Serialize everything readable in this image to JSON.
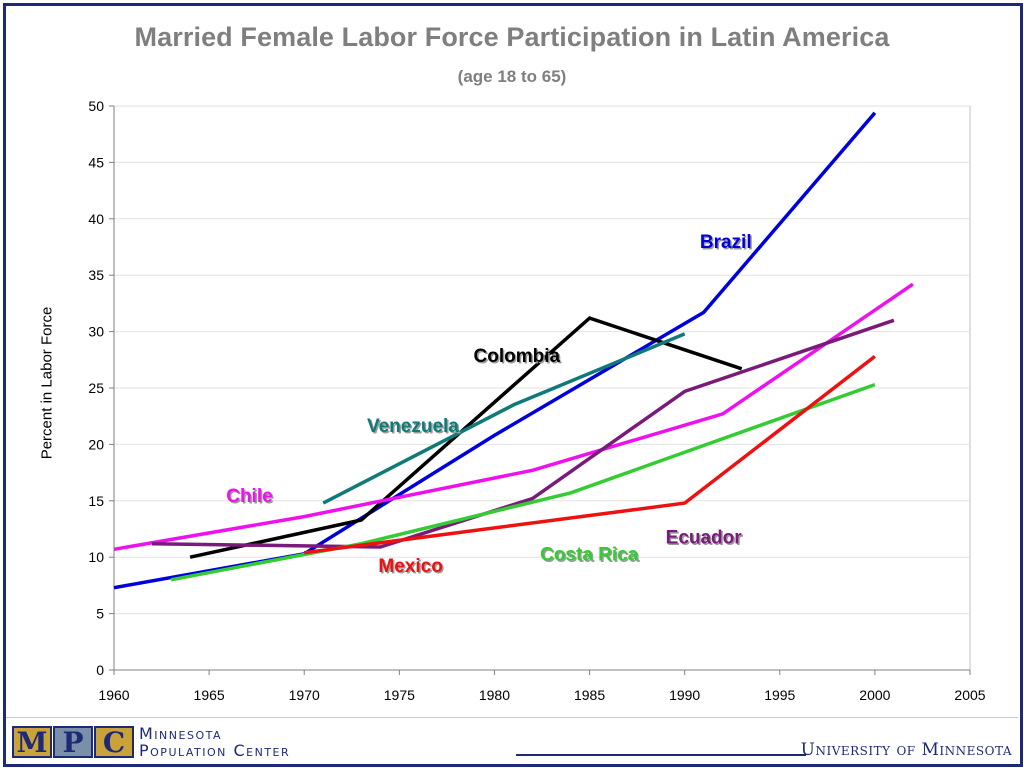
{
  "chart_data": {
    "type": "line",
    "title": "Married Female Labor Force Participation in Latin America",
    "subtitle": "(age 18 to 65)",
    "xlabel": "",
    "ylabel": "Percent in Labor Force",
    "xlim": [
      1960,
      2005
    ],
    "ylim": [
      0,
      50
    ],
    "xticks": [
      1960,
      1965,
      1970,
      1975,
      1980,
      1985,
      1990,
      1995,
      2000,
      2005
    ],
    "yticks": [
      0,
      5,
      10,
      15,
      20,
      25,
      30,
      35,
      40,
      45,
      50
    ],
    "grid": "horizontal",
    "legend": "none",
    "series": [
      {
        "name": "Brazil",
        "color": "#0000dd",
        "points": [
          [
            1960,
            7.3
          ],
          [
            1970,
            10.3
          ],
          [
            1980,
            20.8
          ],
          [
            1991,
            31.7
          ],
          [
            2000,
            49.4
          ]
        ]
      },
      {
        "name": "Colombia",
        "color": "#000000",
        "points": [
          [
            1964,
            10.0
          ],
          [
            1973,
            13.3
          ],
          [
            1985,
            31.2
          ],
          [
            1993,
            26.7
          ]
        ]
      },
      {
        "name": "Venezuela",
        "color": "#107a7a",
        "points": [
          [
            1971,
            14.8
          ],
          [
            1981,
            23.5
          ],
          [
            1990,
            29.8
          ]
        ]
      },
      {
        "name": "Chile",
        "color": "#ee11ee",
        "points": [
          [
            1960,
            10.7
          ],
          [
            1970,
            13.6
          ],
          [
            1982,
            17.7
          ],
          [
            1992,
            22.7
          ],
          [
            2002,
            34.2
          ]
        ]
      },
      {
        "name": "Ecuador",
        "color": "#7a1a7a",
        "points": [
          [
            1962,
            11.2
          ],
          [
            1974,
            10.9
          ],
          [
            1982,
            15.2
          ],
          [
            1990,
            24.7
          ],
          [
            2001,
            31.0
          ]
        ]
      },
      {
        "name": "Costa Rica",
        "color": "#33cc33",
        "points": [
          [
            1963,
            8.0
          ],
          [
            1973,
            11.2
          ],
          [
            1984,
            15.7
          ],
          [
            2000,
            25.3
          ]
        ]
      },
      {
        "name": "Mexico",
        "color": "#ee1111",
        "points": [
          [
            1970,
            10.4
          ],
          [
            1990,
            14.8
          ],
          [
            2000,
            27.8
          ]
        ]
      }
    ],
    "annotations": [
      {
        "text": "Brazil",
        "series": "Brazil",
        "x": 1990.8,
        "y": 37.4
      },
      {
        "text": "Colombia",
        "series": "Colombia",
        "x": 1978.9,
        "y": 27.3
      },
      {
        "text": "Venezuela",
        "series": "Venezuela",
        "x": 1973.3,
        "y": 21.1
      },
      {
        "text": "Chile",
        "series": "Chile",
        "x": 1965.9,
        "y": 14.9
      },
      {
        "text": "Ecuador",
        "series": "Ecuador",
        "x": 1989.0,
        "y": 11.2
      },
      {
        "text": "Costa Rica",
        "series": "Costa Rica",
        "x": 1982.4,
        "y": 9.7
      },
      {
        "text": "Mexico",
        "series": "Mexico",
        "x": 1973.9,
        "y": 8.7
      }
    ]
  },
  "footer": {
    "logo_letters": [
      "M",
      "P",
      "C"
    ],
    "org_line1": "Minnesota",
    "org_line2": "Population Center",
    "university": "University of Minnesota"
  }
}
